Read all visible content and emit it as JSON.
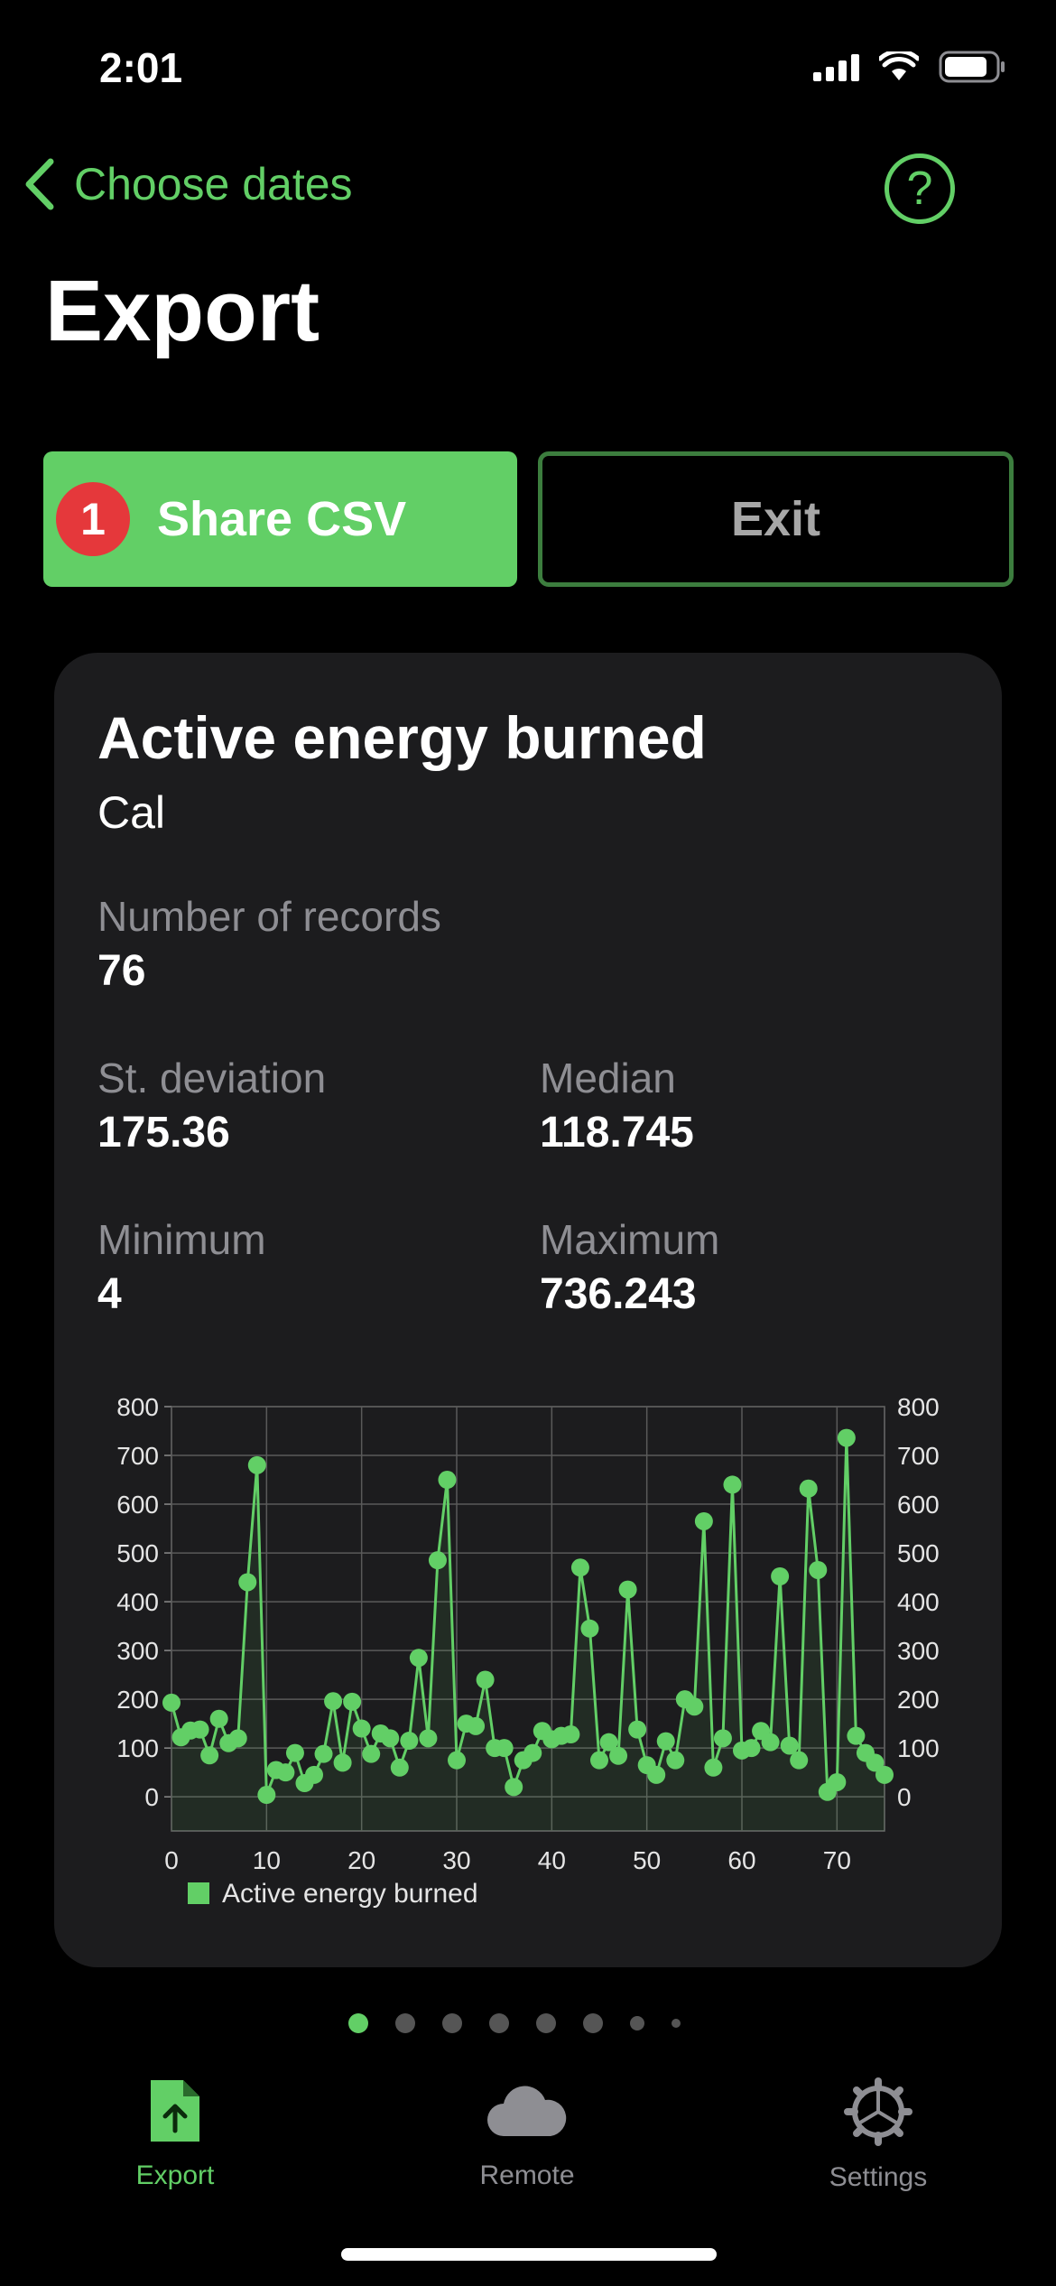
{
  "status_bar": {
    "time": "2:01"
  },
  "nav": {
    "back_label": "Choose dates",
    "help_label": "?"
  },
  "page": {
    "title": "Export"
  },
  "actions": {
    "share_badge": "1",
    "share_label": "Share CSV",
    "exit_label": "Exit"
  },
  "card": {
    "title": "Active energy burned",
    "unit": "Cal",
    "stats": {
      "records_label": "Number of records",
      "records_value": "76",
      "stdev_label": "St. deviation",
      "stdev_value": "175.36",
      "median_label": "Median",
      "median_value": "118.745",
      "min_label": "Minimum",
      "min_value": "4",
      "max_label": "Maximum",
      "max_value": "736.243"
    }
  },
  "chart_data": {
    "type": "line",
    "series": [
      {
        "name": "Active energy burned",
        "color": "#62cf66",
        "values": [
          193,
          122,
          136,
          138,
          85,
          160,
          110,
          120,
          440,
          680,
          4,
          55,
          50,
          90,
          28,
          45,
          88,
          196,
          70,
          195,
          140,
          88,
          130,
          120,
          60,
          115,
          285,
          120,
          485,
          650,
          75,
          150,
          145,
          240,
          100,
          100,
          20,
          75,
          90,
          135,
          118,
          125,
          128,
          470,
          345,
          75,
          112,
          84,
          425,
          138,
          65,
          45,
          114,
          75,
          200,
          185,
          565,
          60,
          120,
          640,
          95,
          100,
          135,
          112,
          452,
          105,
          75,
          632,
          465,
          10,
          30,
          736,
          125,
          90,
          70,
          45
        ]
      }
    ],
    "xlim": [
      0,
      75
    ],
    "ylim": [
      -70,
      800
    ],
    "xticks": [
      0,
      10,
      20,
      30,
      40,
      50,
      60,
      70
    ],
    "yticks": [
      0,
      100,
      200,
      300,
      400,
      500,
      600,
      700,
      800
    ],
    "legend": "bottom-left",
    "grid": true
  },
  "pager": {
    "count": 8,
    "active": 0
  },
  "tabs": [
    {
      "label": "Export",
      "icon": "document-upload-icon",
      "active": true
    },
    {
      "label": "Remote",
      "icon": "cloud-icon",
      "active": false
    },
    {
      "label": "Settings",
      "icon": "gear-icon",
      "active": false
    }
  ],
  "colors": {
    "accent": "#62cf66",
    "badge": "#e5383b",
    "card": "#1c1c1e"
  }
}
